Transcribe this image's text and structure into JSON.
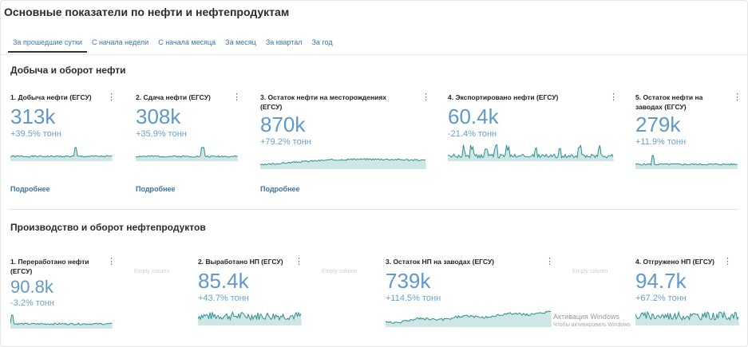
{
  "page": {
    "title": "Основные показатели по нефти и нефтепродуктам"
  },
  "tabs": [
    {
      "label": "За прошедшие сутки",
      "active": true
    },
    {
      "label": "С начала недели"
    },
    {
      "label": "С начала месяца"
    },
    {
      "label": "За месяц"
    },
    {
      "label": "За квартал"
    },
    {
      "label": "За год"
    }
  ],
  "section1": {
    "title": "Добыча и оборот нефти",
    "cards": [
      {
        "title": "1. Добыча нефти (ЕГСУ)",
        "value": "313k",
        "delta": "+39.5% тонн",
        "more": "Подробнее"
      },
      {
        "title": "2. Сдача нефти (ЕГСУ)",
        "value": "308k",
        "delta": "+35.9% тонн",
        "more": "Подробнее"
      },
      {
        "title": "3. Остаток нефти на месторождениях (ЕГСУ)",
        "value": "870k",
        "delta": "+79.2% тонн",
        "more": "Подробнее"
      },
      {
        "title": "4. Экспортировано нефти (ЕГСУ)",
        "value": "60.4k",
        "delta": "-21.4% тонн"
      },
      {
        "title": "5. Остаток нефти на заводах (ЕГСУ)",
        "value": "279k",
        "delta": "+11.9% тонн"
      }
    ]
  },
  "section2": {
    "title": "Производство и оборот нефтепродуктов",
    "empty_label": "Empty column",
    "cards": [
      {
        "title": "1. Переработано нефти (ЕГСУ)",
        "value": "90.8k",
        "delta": "-3.2% тонн"
      },
      {
        "title": "2. Выработано НП (ЕГСУ)",
        "value": "85.4k",
        "delta": "+43.7% тонн"
      },
      {
        "title": "3. Остаток НП на заводах (ЕГСУ)",
        "value": "739k",
        "delta": "+114.5% тонн"
      },
      {
        "title": "4. Отгружено НП (ЕГСУ)",
        "value": "94.7k",
        "delta": "+67.2% тонн"
      }
    ]
  },
  "menu_glyph": "⋮",
  "watermark": {
    "line1": "Активация Windows",
    "line2": "Чтобы активировать Windows"
  },
  "colors": {
    "accent": "#5f99c8",
    "spark_line": "#2f8f8f",
    "spark_fill": "#b9dcdc",
    "link": "#3d73ad"
  }
}
